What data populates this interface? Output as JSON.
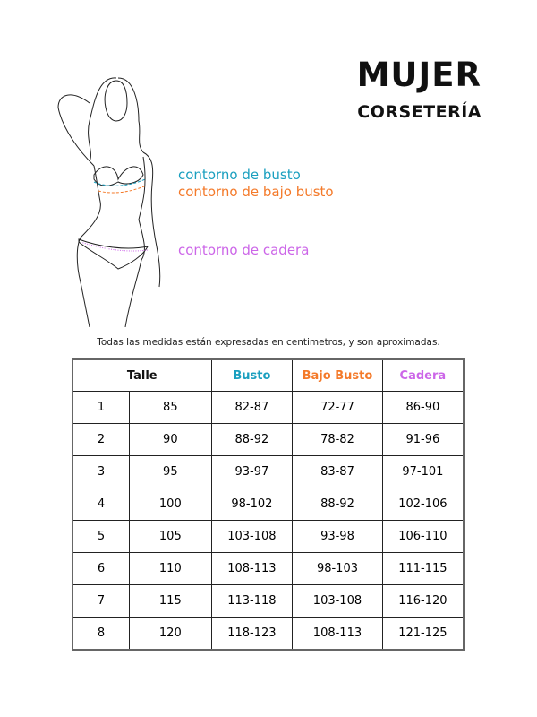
{
  "header": {
    "title": "MUJER",
    "subtitle": "CORSETERÍA"
  },
  "labels": {
    "busto": {
      "text": "contorno de busto",
      "color": "#1a9fbf"
    },
    "bajo_busto": {
      "text": "contorno de bajo busto",
      "color": "#f47a2a"
    },
    "cadera": {
      "text": "contorno de cadera",
      "color": "#cc66e8"
    }
  },
  "note": "Todas las medidas están expresadas en centimetros, y son aproximadas.",
  "table": {
    "headers": [
      "Talle",
      "Busto",
      "Bajo Busto",
      "Cadera"
    ],
    "rows": [
      [
        "1",
        "85",
        "82-87",
        "72-77",
        "86-90"
      ],
      [
        "2",
        "90",
        "88-92",
        "78-82",
        "91-96"
      ],
      [
        "3",
        "95",
        "93-97",
        "83-87",
        "97-101"
      ],
      [
        "4",
        "100",
        "98-102",
        "88-92",
        "102-106"
      ],
      [
        "5",
        "105",
        "103-108",
        "93-98",
        "106-110"
      ],
      [
        "6",
        "110",
        "108-113",
        "98-103",
        "111-115"
      ],
      [
        "7",
        "115",
        "113-118",
        "103-108",
        "116-120"
      ],
      [
        "8",
        "120",
        "118-123",
        "108-113",
        "121-125"
      ]
    ]
  }
}
